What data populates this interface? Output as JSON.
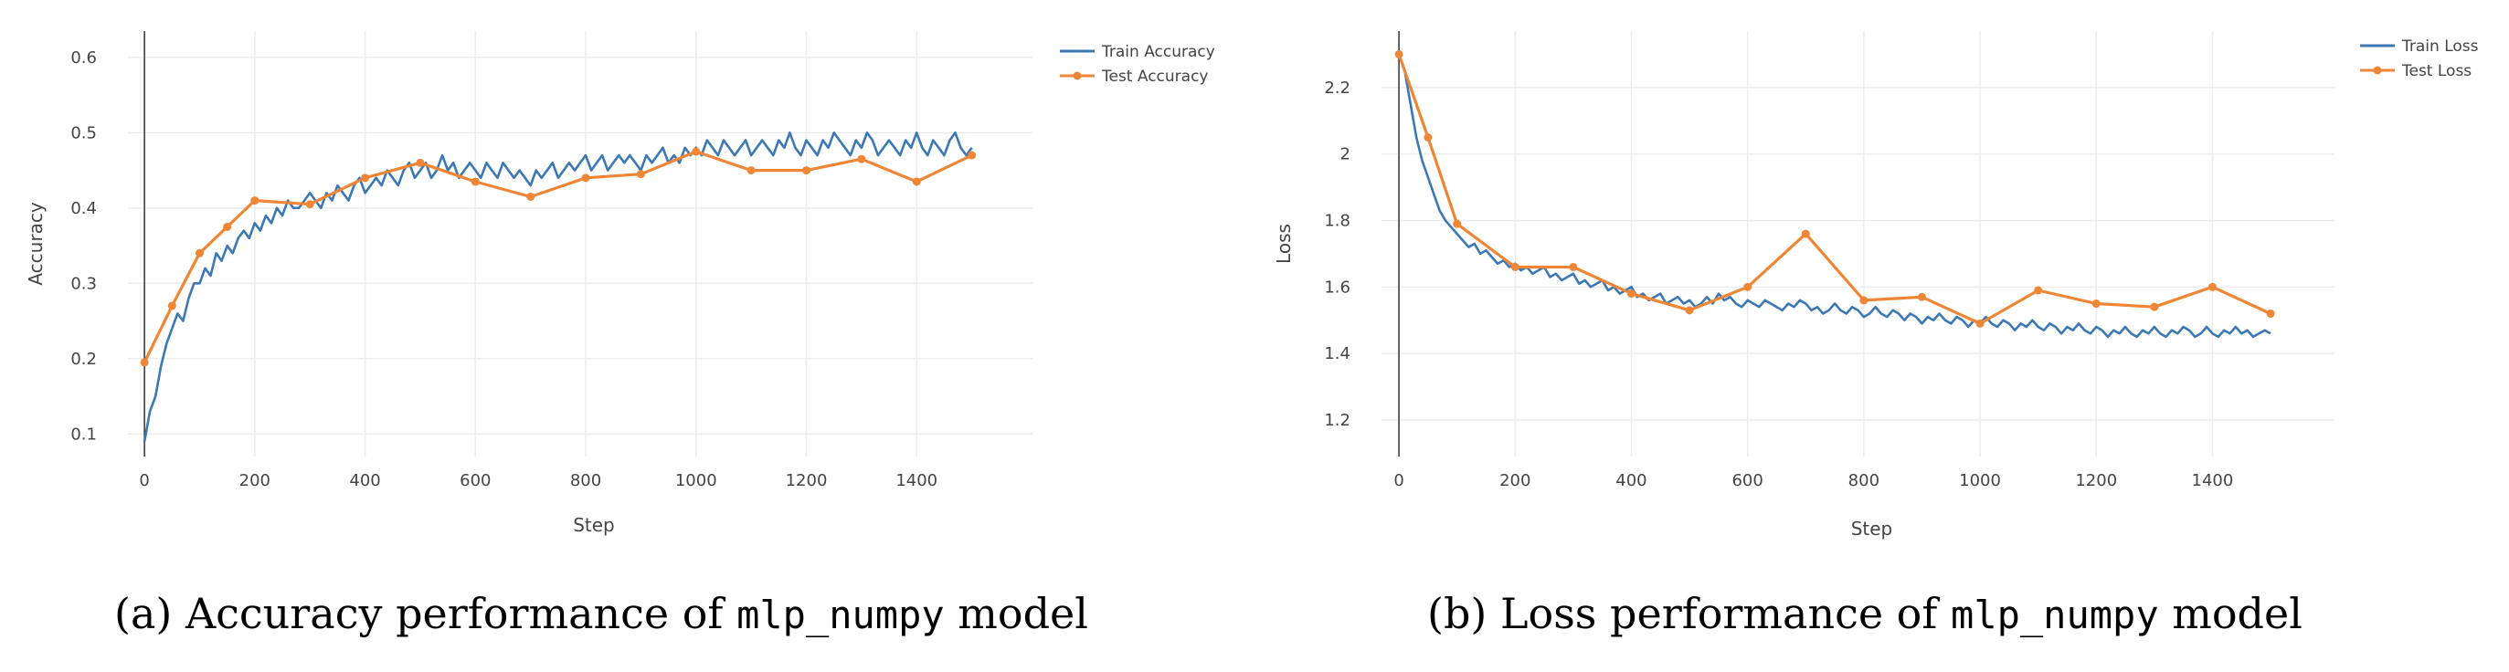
{
  "colors": {
    "train": "#3b78b4",
    "test": "#ef8636",
    "grid": "#ececec",
    "axis": "#333333"
  },
  "captions": {
    "a": {
      "prefix": "(a) Accuracy performance of ",
      "code": "mlp_numpy",
      "suffix": " model"
    },
    "b": {
      "prefix": "(b) Loss performance of ",
      "code": "mlp_numpy",
      "suffix": " model"
    }
  },
  "chart_data": [
    {
      "type": "line",
      "xlabel": "Step",
      "ylabel": "Accuracy",
      "xlim": [
        -30,
        1610
      ],
      "ylim": [
        0.07,
        0.635
      ],
      "xticks": [
        0,
        200,
        400,
        600,
        800,
        1000,
        1200,
        1400
      ],
      "yticks": [
        0.1,
        0.2,
        0.3,
        0.4,
        0.5,
        0.6
      ],
      "grid": true,
      "legend_position": "top-right",
      "series": [
        {
          "name": "Train Accuracy",
          "style": "line",
          "step": 10,
          "x_start": 0,
          "values": [
            0.09,
            0.13,
            0.15,
            0.19,
            0.22,
            0.24,
            0.26,
            0.25,
            0.28,
            0.3,
            0.3,
            0.32,
            0.31,
            0.34,
            0.33,
            0.35,
            0.34,
            0.36,
            0.37,
            0.36,
            0.38,
            0.37,
            0.39,
            0.38,
            0.4,
            0.39,
            0.41,
            0.4,
            0.4,
            0.41,
            0.42,
            0.41,
            0.4,
            0.42,
            0.41,
            0.43,
            0.42,
            0.41,
            0.43,
            0.44,
            0.42,
            0.43,
            0.44,
            0.43,
            0.45,
            0.44,
            0.43,
            0.45,
            0.46,
            0.44,
            0.45,
            0.46,
            0.44,
            0.45,
            0.47,
            0.45,
            0.46,
            0.44,
            0.45,
            0.46,
            0.45,
            0.44,
            0.46,
            0.45,
            0.44,
            0.46,
            0.45,
            0.44,
            0.45,
            0.44,
            0.43,
            0.45,
            0.44,
            0.45,
            0.46,
            0.44,
            0.45,
            0.46,
            0.45,
            0.46,
            0.47,
            0.45,
            0.46,
            0.47,
            0.45,
            0.46,
            0.47,
            0.46,
            0.47,
            0.46,
            0.45,
            0.47,
            0.46,
            0.47,
            0.48,
            0.46,
            0.47,
            0.46,
            0.48,
            0.47,
            0.48,
            0.47,
            0.49,
            0.48,
            0.47,
            0.49,
            0.48,
            0.47,
            0.48,
            0.49,
            0.47,
            0.48,
            0.49,
            0.48,
            0.47,
            0.49,
            0.48,
            0.5,
            0.48,
            0.47,
            0.49,
            0.48,
            0.47,
            0.49,
            0.48,
            0.5,
            0.49,
            0.48,
            0.47,
            0.49,
            0.48,
            0.5,
            0.49,
            0.47,
            0.48,
            0.49,
            0.48,
            0.47,
            0.49,
            0.48,
            0.5,
            0.48,
            0.47,
            0.49,
            0.48,
            0.47,
            0.49,
            0.5,
            0.48,
            0.47,
            0.48
          ]
        },
        {
          "name": "Test Accuracy",
          "style": "line+markers",
          "x": [
            0,
            50,
            100,
            150,
            200,
            300,
            400,
            500,
            600,
            700,
            800,
            900,
            1000,
            1100,
            1200,
            1300,
            1400,
            1500
          ],
          "values": [
            0.195,
            0.27,
            0.34,
            0.375,
            0.41,
            0.405,
            0.44,
            0.46,
            0.435,
            0.415,
            0.44,
            0.445,
            0.475,
            0.45,
            0.45,
            0.465,
            0.435,
            0.47
          ]
        }
      ]
    },
    {
      "type": "line",
      "xlabel": "Step",
      "ylabel": "Loss",
      "xlim": [
        -30,
        1610
      ],
      "ylim": [
        1.09,
        2.37
      ],
      "xticks": [
        0,
        200,
        400,
        600,
        800,
        1000,
        1200,
        1400
      ],
      "yticks": [
        1.2,
        1.4,
        1.6,
        1.8,
        2,
        2.2
      ],
      "ytick_labels": [
        "1.2",
        "1.4",
        "1.6",
        "1.8",
        "2",
        "2.2"
      ],
      "grid": true,
      "legend_position": "top-right",
      "series": [
        {
          "name": "Train Loss",
          "style": "line",
          "step": 10,
          "x_start": 0,
          "values": [
            2.3,
            2.25,
            2.15,
            2.05,
            1.98,
            1.93,
            1.88,
            1.83,
            1.8,
            1.78,
            1.76,
            1.74,
            1.72,
            1.73,
            1.7,
            1.71,
            1.69,
            1.67,
            1.68,
            1.66,
            1.67,
            1.65,
            1.66,
            1.64,
            1.65,
            1.66,
            1.63,
            1.64,
            1.62,
            1.63,
            1.64,
            1.61,
            1.62,
            1.6,
            1.61,
            1.62,
            1.59,
            1.6,
            1.58,
            1.59,
            1.6,
            1.57,
            1.58,
            1.56,
            1.57,
            1.58,
            1.55,
            1.56,
            1.57,
            1.55,
            1.56,
            1.54,
            1.55,
            1.57,
            1.55,
            1.58,
            1.56,
            1.57,
            1.55,
            1.54,
            1.56,
            1.55,
            1.54,
            1.56,
            1.55,
            1.54,
            1.53,
            1.55,
            1.54,
            1.56,
            1.55,
            1.53,
            1.54,
            1.52,
            1.53,
            1.55,
            1.53,
            1.52,
            1.54,
            1.53,
            1.51,
            1.52,
            1.54,
            1.52,
            1.51,
            1.53,
            1.52,
            1.5,
            1.52,
            1.51,
            1.49,
            1.51,
            1.5,
            1.52,
            1.5,
            1.49,
            1.51,
            1.5,
            1.48,
            1.5,
            1.49,
            1.51,
            1.49,
            1.48,
            1.5,
            1.49,
            1.47,
            1.49,
            1.48,
            1.5,
            1.48,
            1.47,
            1.49,
            1.48,
            1.46,
            1.48,
            1.47,
            1.49,
            1.47,
            1.46,
            1.48,
            1.47,
            1.45,
            1.47,
            1.46,
            1.48,
            1.46,
            1.45,
            1.47,
            1.46,
            1.48,
            1.46,
            1.45,
            1.47,
            1.46,
            1.48,
            1.47,
            1.45,
            1.46,
            1.48,
            1.46,
            1.45,
            1.47,
            1.46,
            1.48,
            1.46,
            1.47,
            1.45,
            1.46,
            1.47,
            1.46
          ]
        },
        {
          "name": "Test Loss",
          "style": "line+markers",
          "x": [
            0,
            50,
            100,
            200,
            300,
            400,
            500,
            600,
            700,
            800,
            900,
            1000,
            1100,
            1200,
            1300,
            1400,
            1500
          ],
          "values": [
            2.3,
            2.05,
            1.79,
            1.66,
            1.66,
            1.58,
            1.53,
            1.6,
            1.76,
            1.56,
            1.57,
            1.49,
            1.59,
            1.55,
            1.54,
            1.6,
            1.52
          ]
        }
      ]
    }
  ]
}
